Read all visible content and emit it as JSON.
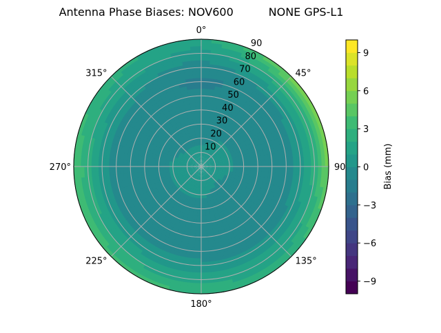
{
  "chart_data": {
    "type": "heatmap",
    "subtype": "polar filled contour",
    "title": "Antenna Phase Biases: NOV600          NONE GPS-L1",
    "angular_ticks": [
      "0°",
      "45°",
      "90°",
      "135°",
      "180°",
      "225°",
      "270°",
      "315°"
    ],
    "angular_direction": "clockwise, 0° at top",
    "radial_ticks": [
      "10",
      "20",
      "30",
      "40",
      "50",
      "60",
      "70",
      "80",
      "90"
    ],
    "radial_range": [
      0,
      90
    ],
    "grid": true,
    "colorbar": {
      "label": "Bias (mm)",
      "range": [
        -10,
        10
      ],
      "level_step": 1,
      "ticks": [
        "−9",
        "−6",
        "−3",
        "0",
        "3",
        "6",
        "9"
      ],
      "tick_values": [
        -9,
        -6,
        -3,
        0,
        3,
        6,
        9
      ],
      "colormap": "viridis",
      "colormap_anchors": [
        "#440154",
        "#482878",
        "#3e4989",
        "#31688e",
        "#26828e",
        "#1f9e89",
        "#35b779",
        "#6ece58",
        "#b5de2b",
        "#fde725"
      ]
    },
    "grid_values": {
      "azimuth_deg": [
        0,
        45,
        90,
        135,
        180,
        225,
        270,
        315
      ],
      "zenith_deg": [
        0,
        10,
        20,
        30,
        40,
        50,
        60,
        70,
        80,
        90
      ],
      "bias_mm": [
        [
          0.5,
          0.3,
          -0.3,
          -0.6,
          -0.7,
          -0.8,
          -1.3,
          -0.6,
          0.5,
          1.5
        ],
        [
          0.5,
          0.3,
          0.2,
          -0.5,
          -0.7,
          -0.8,
          -0.6,
          0.3,
          2.5,
          5.5
        ],
        [
          0.5,
          0.3,
          0.2,
          -0.5,
          -0.7,
          -0.7,
          -0.6,
          0.5,
          2.5,
          5.5
        ],
        [
          0.5,
          0.3,
          -0.3,
          -0.6,
          -0.7,
          -0.7,
          -0.5,
          0.2,
          1.5,
          2.5
        ],
        [
          0.5,
          0.3,
          0.2,
          -0.5,
          -0.7,
          -0.7,
          -0.5,
          0.3,
          1.5,
          3.0
        ],
        [
          0.5,
          0.3,
          0.1,
          -0.5,
          -0.7,
          -0.7,
          -0.5,
          0.5,
          2.0,
          3.5
        ],
        [
          0.5,
          0.3,
          0.2,
          -0.4,
          -0.7,
          -0.7,
          -0.5,
          0.5,
          2.5,
          4.0
        ],
        [
          0.5,
          0.3,
          -0.3,
          -0.6,
          -0.7,
          -0.7,
          -0.5,
          0.3,
          1.5,
          2.5
        ]
      ]
    }
  }
}
